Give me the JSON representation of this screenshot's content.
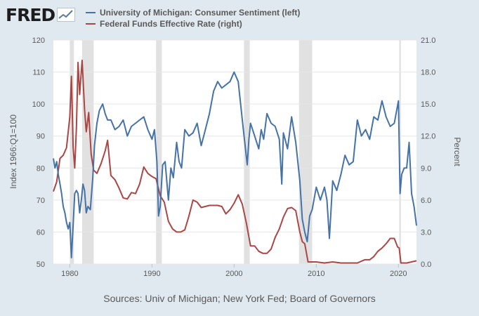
{
  "logo": {
    "text": "FRED",
    "icon": "trend-chart-icon"
  },
  "source": "Sources: Univ of Michigan; New York Fed; Board of Governors",
  "colors": {
    "sentiment": "#4572a7",
    "fedfunds": "#aa4643",
    "recession": "#e1e1e1",
    "grid": "#e6e6e6",
    "text": "#595959"
  },
  "chart_data": {
    "type": "line",
    "x_range": [
      1978.0,
      2022.2
    ],
    "xticks": [
      "1980",
      "1990",
      "2000",
      "2010",
      "2020"
    ],
    "grid": "horizontal",
    "legend": "top",
    "left_axis": {
      "label": "Index 1966:Q1=100",
      "range": [
        50,
        120
      ],
      "ticks": [
        "50",
        "60",
        "70",
        "80",
        "90",
        "100",
        "110",
        "120"
      ]
    },
    "right_axis": {
      "label": "Percent",
      "range": [
        0,
        21
      ],
      "ticks": [
        "0.0",
        "3.0",
        "6.0",
        "9.0",
        "12.0",
        "15.0",
        "18.0",
        "21.0"
      ]
    },
    "recessions": [
      [
        1980.0,
        1980.5
      ],
      [
        1981.5,
        1982.9
      ],
      [
        1990.5,
        1991.2
      ],
      [
        2001.2,
        2001.9
      ],
      [
        2007.9,
        2009.5
      ],
      [
        2020.1,
        2020.3
      ]
    ],
    "series": [
      {
        "name": "University of Michigan: Consumer Sentiment (left)",
        "axis": "left",
        "x": [
          1978.0,
          1978.2,
          1978.4,
          1978.6,
          1978.8,
          1979.0,
          1979.2,
          1979.4,
          1979.6,
          1979.8,
          1980.0,
          1980.2,
          1980.4,
          1980.6,
          1980.8,
          1981.0,
          1981.2,
          1981.4,
          1981.6,
          1981.8,
          1982.0,
          1982.2,
          1982.5,
          1982.8,
          1983.0,
          1983.3,
          1983.6,
          1984.0,
          1984.3,
          1984.6,
          1985.0,
          1985.5,
          1986.0,
          1986.5,
          1987.0,
          1987.5,
          1988.0,
          1988.5,
          1989.0,
          1989.5,
          1990.0,
          1990.3,
          1990.6,
          1990.8,
          1991.0,
          1991.3,
          1991.6,
          1992.0,
          1992.3,
          1992.6,
          1993.0,
          1993.3,
          1993.6,
          1994.0,
          1994.5,
          1995.0,
          1995.5,
          1996.0,
          1996.5,
          1997.0,
          1997.5,
          1998.0,
          1998.5,
          1999.0,
          1999.5,
          2000.0,
          2000.5,
          2001.0,
          2001.3,
          2001.6,
          2001.8,
          2002.0,
          2002.5,
          2003.0,
          2003.3,
          2003.6,
          2004.0,
          2004.5,
          2005.0,
          2005.5,
          2005.8,
          2006.0,
          2006.5,
          2007.0,
          2007.5,
          2008.0,
          2008.3,
          2008.6,
          2008.9,
          2009.2,
          2009.5,
          2010.0,
          2010.5,
          2011.0,
          2011.3,
          2011.6,
          2012.0,
          2012.5,
          2013.0,
          2013.5,
          2014.0,
          2014.5,
          2015.0,
          2015.5,
          2016.0,
          2016.5,
          2017.0,
          2017.5,
          2018.0,
          2018.5,
          2019.0,
          2019.5,
          2020.0,
          2020.2,
          2020.4,
          2020.7,
          2021.0,
          2021.3,
          2021.6,
          2021.9,
          2022.2
        ],
        "y": [
          83,
          80,
          82,
          78,
          75,
          72,
          68,
          66,
          63,
          61,
          63,
          52,
          62,
          72,
          73,
          72,
          66,
          70,
          75,
          73,
          66,
          68,
          67,
          77,
          87,
          94,
          98,
          100,
          97,
          95,
          95,
          92,
          93,
          95,
          90,
          93,
          94,
          95,
          96,
          92,
          89,
          92,
          82,
          65,
          68,
          81,
          82,
          70,
          80,
          77,
          88,
          82,
          80,
          92,
          90,
          91,
          94,
          87,
          92,
          97,
          104,
          107,
          105,
          106,
          107,
          110,
          107,
          95,
          88,
          81,
          89,
          94,
          90,
          86,
          92,
          89,
          97,
          94,
          93,
          89,
          75,
          91,
          86,
          96,
          88,
          76,
          64,
          60,
          57,
          65,
          67,
          74,
          70,
          74,
          70,
          58,
          76,
          73,
          78,
          84,
          81,
          82,
          95,
          90,
          92,
          89,
          96,
          95,
          101,
          96,
          93,
          94,
          101,
          72,
          78,
          80,
          80,
          88,
          72,
          68,
          62
        ]
      },
      {
        "name": "Federal Funds Effective Rate (right)",
        "axis": "right",
        "x": [
          1978.0,
          1978.4,
          1978.8,
          1979.2,
          1979.6,
          1980.0,
          1980.2,
          1980.4,
          1980.6,
          1980.8,
          1981.0,
          1981.2,
          1981.5,
          1981.8,
          1982.0,
          1982.3,
          1982.6,
          1982.9,
          1983.3,
          1983.8,
          1984.3,
          1984.6,
          1985.0,
          1985.5,
          1986.0,
          1986.5,
          1987.0,
          1987.5,
          1988.0,
          1988.5,
          1989.0,
          1989.5,
          1990.0,
          1990.5,
          1991.0,
          1991.5,
          1992.0,
          1992.5,
          1993.0,
          1993.5,
          1994.0,
          1994.5,
          1995.0,
          1995.5,
          1996.0,
          1997.0,
          1998.0,
          1998.5,
          1999.0,
          1999.5,
          2000.0,
          2000.5,
          2001.0,
          2001.5,
          2002.0,
          2002.5,
          2003.0,
          2003.5,
          2004.0,
          2004.5,
          2005.0,
          2005.5,
          2006.0,
          2006.5,
          2007.0,
          2007.5,
          2008.0,
          2008.3,
          2008.6,
          2009.0,
          2010.0,
          2011.0,
          2012.0,
          2013.0,
          2014.0,
          2015.0,
          2015.9,
          2016.5,
          2017.0,
          2017.5,
          2018.0,
          2018.5,
          2019.0,
          2019.5,
          2019.9,
          2020.1,
          2020.3,
          2021.0,
          2022.2
        ],
        "y": [
          6.8,
          7.7,
          9.9,
          10.2,
          10.9,
          13.8,
          17.6,
          11.0,
          9.0,
          12.8,
          18.9,
          15.9,
          19.1,
          14.5,
          12.4,
          14.2,
          10.3,
          8.8,
          8.5,
          9.4,
          10.6,
          11.6,
          8.3,
          7.9,
          7.1,
          6.2,
          6.1,
          6.7,
          6.6,
          7.5,
          9.1,
          8.5,
          8.2,
          8.0,
          6.4,
          5.8,
          4.0,
          3.3,
          3.0,
          3.0,
          3.2,
          4.5,
          6.0,
          5.8,
          5.3,
          5.5,
          5.5,
          5.4,
          4.7,
          5.1,
          5.7,
          6.5,
          5.6,
          3.8,
          1.7,
          1.7,
          1.2,
          1.0,
          1.0,
          1.4,
          2.5,
          3.3,
          4.4,
          5.2,
          5.3,
          5.0,
          3.0,
          2.1,
          1.9,
          0.2,
          0.2,
          0.1,
          0.2,
          0.1,
          0.1,
          0.1,
          0.4,
          0.4,
          0.7,
          1.2,
          1.5,
          1.9,
          2.4,
          2.4,
          1.6,
          1.5,
          0.1,
          0.1,
          0.3
        ]
      }
    ]
  }
}
